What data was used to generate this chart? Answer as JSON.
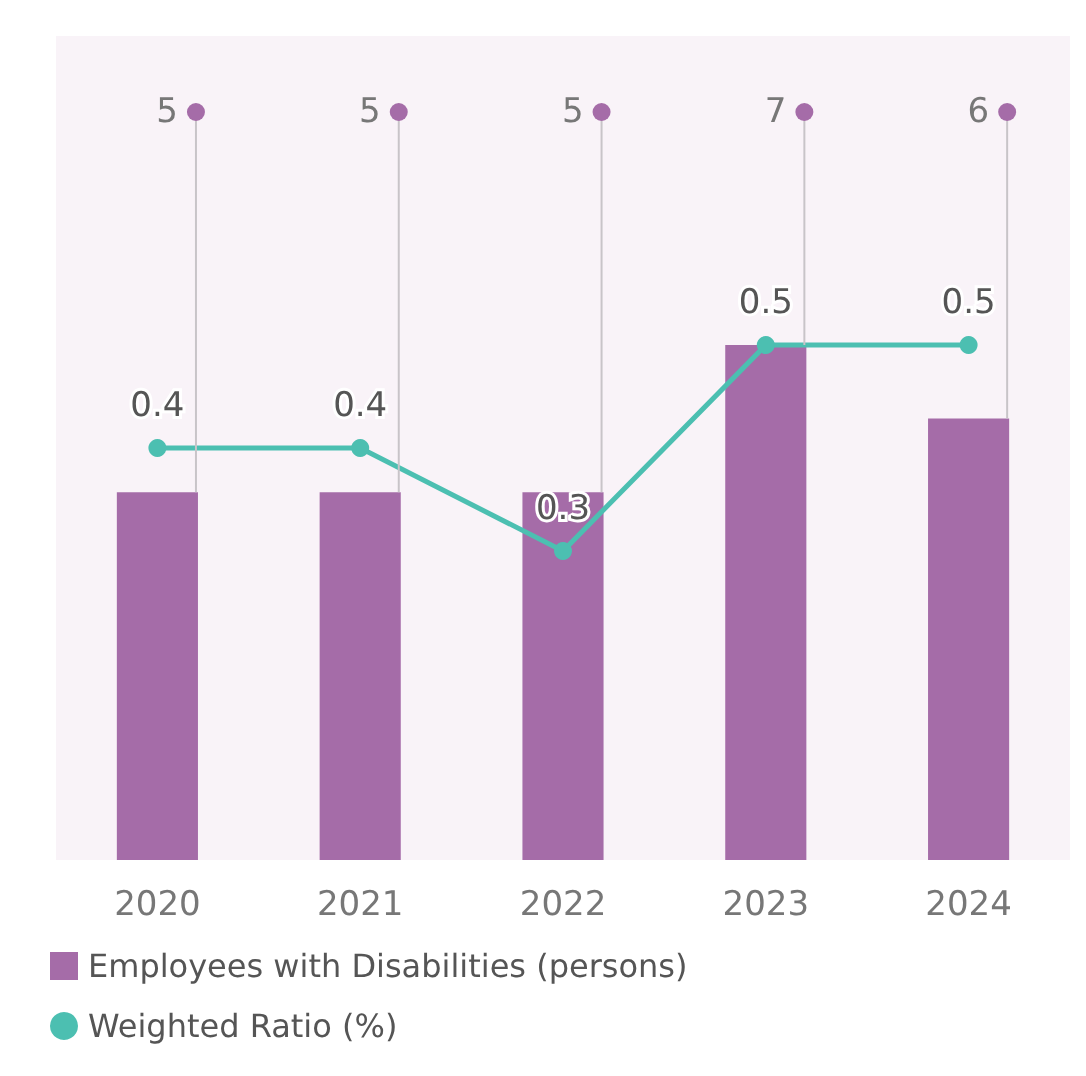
{
  "chart_data": {
    "type": "bar",
    "categories": [
      "2020",
      "2021",
      "2022",
      "2023",
      "2024"
    ],
    "series": [
      {
        "name": "Employees with Disabilities (persons)",
        "type": "bar",
        "color": "#a56ca8",
        "values": [
          5,
          5,
          5,
          7,
          6
        ]
      },
      {
        "name": "Weighted Ratio (%)",
        "type": "line",
        "axis": "y2",
        "color": "#4cbfb1",
        "values": [
          0.4,
          0.4,
          0.3,
          0.5,
          0.5
        ]
      }
    ],
    "data_labels": true,
    "legend": "bottom",
    "grid": false,
    "marker": "circle"
  }
}
